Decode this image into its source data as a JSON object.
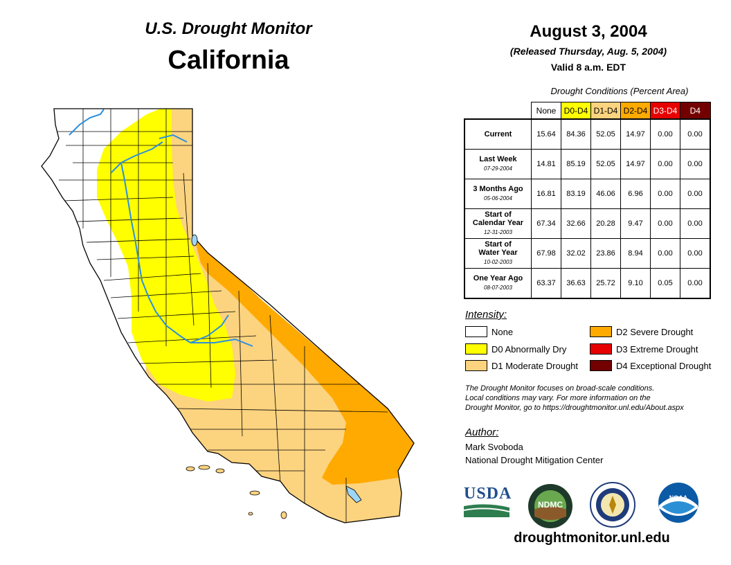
{
  "header": {
    "monitor_title": "U.S. Drought Monitor",
    "state": "California"
  },
  "date": {
    "main": "August 3, 2004",
    "released": "(Released Thursday, Aug. 5, 2004)",
    "valid": "Valid 8 a.m. EDT"
  },
  "conditions": {
    "title": "Drought Conditions (Percent Area)",
    "columns": [
      {
        "label": "None",
        "color": "#ffffff",
        "text": "#000000"
      },
      {
        "label": "D0-D4",
        "color": "#ffff00",
        "text": "#000000"
      },
      {
        "label": "D1-D4",
        "color": "#fcd37f",
        "text": "#000000"
      },
      {
        "label": "D2-D4",
        "color": "#ffaa00",
        "text": "#000000"
      },
      {
        "label": "D3-D4",
        "color": "#e60000",
        "text": "#ffffff"
      },
      {
        "label": "D4",
        "color": "#730000",
        "text": "#ffffff"
      }
    ],
    "rows": [
      {
        "label": "Current",
        "sub": "",
        "values": [
          "15.64",
          "84.36",
          "52.05",
          "14.97",
          "0.00",
          "0.00"
        ]
      },
      {
        "label": "Last Week",
        "sub": "07-29-2004",
        "values": [
          "14.81",
          "85.19",
          "52.05",
          "14.97",
          "0.00",
          "0.00"
        ]
      },
      {
        "label": "3 Months Ago",
        "sub": "05-06-2004",
        "values": [
          "16.81",
          "83.19",
          "46.06",
          "6.96",
          "0.00",
          "0.00"
        ]
      },
      {
        "label": "Start of Calendar Year",
        "sub": "12-31-2003",
        "values": [
          "67.34",
          "32.66",
          "20.28",
          "9.47",
          "0.00",
          "0.00"
        ]
      },
      {
        "label": "Start of Water Year",
        "sub": "10-02-2003",
        "values": [
          "67.98",
          "32.02",
          "23.86",
          "8.94",
          "0.00",
          "0.00"
        ]
      },
      {
        "label": "One Year Ago",
        "sub": "08-07-2003",
        "values": [
          "63.37",
          "36.63",
          "25.72",
          "9.10",
          "0.05",
          "0.00"
        ]
      }
    ]
  },
  "intensity": {
    "title": "Intensity:",
    "items": [
      {
        "label": "None",
        "color": "#ffffff"
      },
      {
        "label": "D0 Abnormally Dry",
        "color": "#ffff00"
      },
      {
        "label": "D1 Moderate Drought",
        "color": "#fcd37f"
      },
      {
        "label": "D2 Severe Drought",
        "color": "#ffaa00"
      },
      {
        "label": "D3 Extreme Drought",
        "color": "#e60000"
      },
      {
        "label": "D4 Exceptional Drought",
        "color": "#730000"
      }
    ]
  },
  "note": {
    "line1": "The Drought Monitor focuses on broad-scale conditions.",
    "line2": "Local conditions may vary. For more information on the",
    "line3": "Drought Monitor, go to https://droughtmonitor.unl.edu/About.aspx"
  },
  "author": {
    "title": "Author:",
    "name": "Mark Svoboda",
    "org": "National Drought Mitigation Center"
  },
  "logos": {
    "usda": "USDA",
    "ndmc": "NDMC",
    "noaa": "NOAA"
  },
  "website": "droughtmonitor.unl.edu",
  "map_colors": {
    "none": "#ffffff",
    "d0": "#ffff00",
    "d1": "#fcd37f",
    "d2": "#ffaa00",
    "water": "#9fd6f5",
    "river": "#2a8fe0"
  }
}
